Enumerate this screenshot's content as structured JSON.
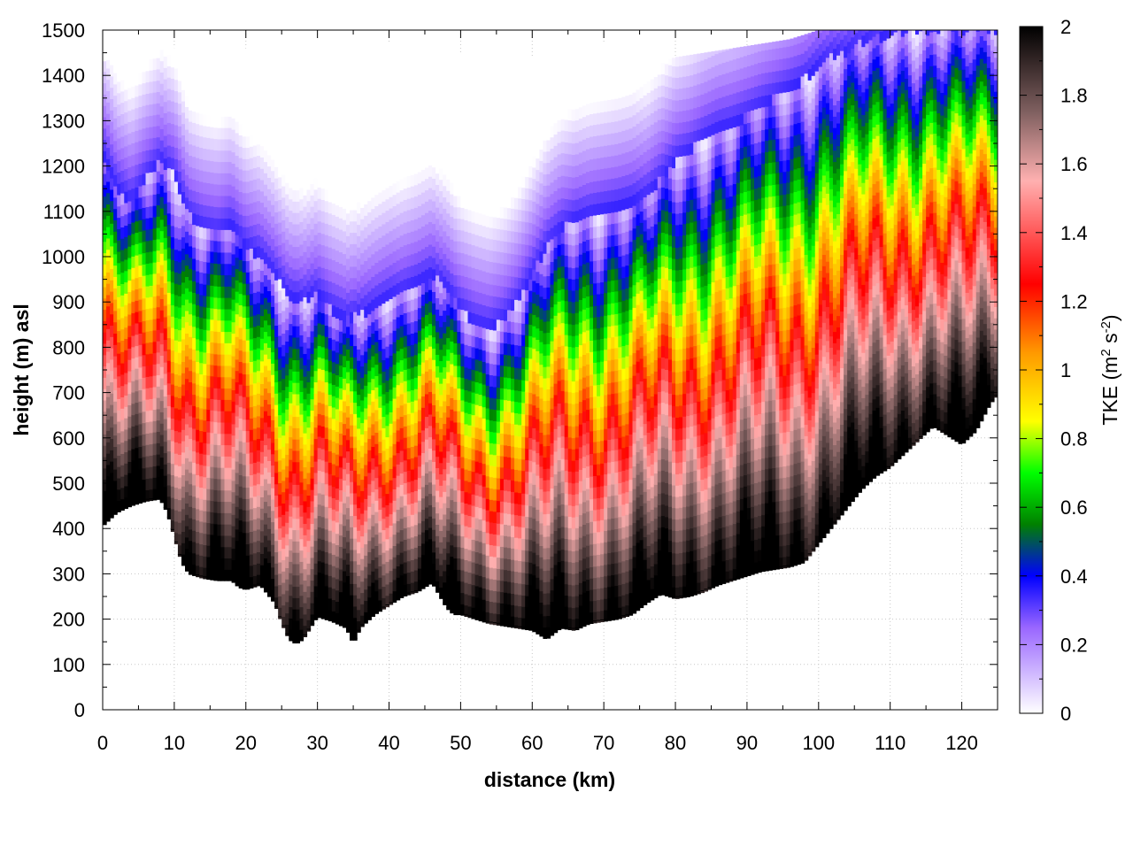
{
  "chart_data": {
    "type": "heatmap",
    "title": "",
    "xlabel": "distance (km)",
    "ylabel": "height (m) asl",
    "xlim": [
      0,
      125
    ],
    "ylim": [
      0,
      1500
    ],
    "x_ticks": [
      "0",
      "10",
      "20",
      "30",
      "40",
      "50",
      "60",
      "70",
      "80",
      "90",
      "100",
      "110",
      "120"
    ],
    "x_tick_values": [
      0,
      10,
      20,
      30,
      40,
      50,
      60,
      70,
      80,
      90,
      100,
      110,
      120
    ],
    "y_ticks": [
      "0",
      "100",
      "200",
      "300",
      "400",
      "500",
      "600",
      "700",
      "800",
      "900",
      "1000",
      "1100",
      "1200",
      "1300",
      "1400",
      "1500"
    ],
    "y_tick_values": [
      0,
      100,
      200,
      300,
      400,
      500,
      600,
      700,
      800,
      900,
      1000,
      1100,
      1200,
      1300,
      1400,
      1500
    ],
    "grid": true,
    "colorbar": {
      "label_main": "TKE (m",
      "label_sup1": "2",
      "label_mid": " s",
      "label_sup2": "-2",
      "label_end": ")",
      "range": [
        0,
        2
      ],
      "ticks": [
        "0",
        "0.2",
        "0.4",
        "0.6",
        "0.8",
        "1",
        "1.2",
        "1.4",
        "1.6",
        "1.8",
        "2"
      ],
      "tick_values": [
        0,
        0.2,
        0.4,
        0.6,
        0.8,
        1.0,
        1.2,
        1.4,
        1.6,
        1.8,
        2.0
      ],
      "color_stops": [
        {
          "v": 0.0,
          "color": "#ffffff"
        },
        {
          "v": 0.25,
          "color": "#9966ff"
        },
        {
          "v": 0.4,
          "color": "#0000ff"
        },
        {
          "v": 0.55,
          "color": "#008000"
        },
        {
          "v": 0.7,
          "color": "#00ff00"
        },
        {
          "v": 0.85,
          "color": "#ffff00"
        },
        {
          "v": 1.05,
          "color": "#ff9900"
        },
        {
          "v": 1.25,
          "color": "#ff0000"
        },
        {
          "v": 1.55,
          "color": "#ffb0b0"
        },
        {
          "v": 1.75,
          "color": "#806060"
        },
        {
          "v": 2.0,
          "color": "#000000"
        }
      ]
    },
    "terrain_height_m": {
      "distance_km": [
        0,
        2,
        4,
        6,
        8,
        9,
        11,
        12,
        14,
        16,
        18,
        19,
        20,
        22,
        24,
        25,
        26,
        27,
        28,
        30,
        32,
        34,
        35,
        36,
        38,
        40,
        42,
        44,
        46,
        48,
        49,
        50,
        52,
        54,
        56,
        58,
        60,
        62,
        64,
        66,
        68,
        70,
        72,
        74,
        76,
        78,
        80,
        82,
        84,
        86,
        88,
        90,
        92,
        94,
        96,
        98,
        100,
        102,
        104,
        106,
        108,
        110,
        112,
        114,
        116,
        118,
        120,
        122,
        124,
        125
      ],
      "height_m": [
        410,
        440,
        455,
        465,
        470,
        440,
        330,
        305,
        295,
        290,
        290,
        275,
        270,
        280,
        240,
        195,
        160,
        150,
        160,
        210,
        200,
        185,
        150,
        185,
        215,
        235,
        255,
        265,
        285,
        230,
        215,
        215,
        205,
        195,
        190,
        185,
        180,
        160,
        185,
        180,
        195,
        200,
        205,
        215,
        240,
        260,
        250,
        255,
        265,
        280,
        290,
        300,
        310,
        315,
        320,
        330,
        370,
        410,
        450,
        490,
        520,
        540,
        570,
        600,
        630,
        610,
        590,
        620,
        680,
        700
      ]
    },
    "boundary_layer_top_m": {
      "distance_km": [
        0,
        2,
        4,
        6,
        8,
        10,
        12,
        14,
        16,
        18,
        20,
        22,
        24,
        26,
        28,
        30,
        32,
        34,
        36,
        38,
        40,
        42,
        44,
        46,
        48,
        50,
        52,
        54,
        56,
        58,
        60,
        62,
        64,
        66,
        68,
        70,
        72,
        74,
        76,
        78,
        80,
        82,
        84,
        86,
        88,
        90,
        92,
        94,
        96,
        98,
        100,
        102,
        104,
        106,
        108,
        110,
        112,
        114,
        116,
        118,
        120,
        122,
        124,
        125
      ],
      "height_m": [
        1230,
        1150,
        1120,
        1170,
        1210,
        1180,
        1090,
        1060,
        1050,
        1070,
        1020,
        1000,
        960,
        910,
        900,
        920,
        880,
        860,
        870,
        890,
        910,
        920,
        940,
        960,
        930,
        880,
        850,
        840,
        860,
        900,
        960,
        1020,
        1060,
        1080,
        1090,
        1100,
        1110,
        1120,
        1130,
        1170,
        1210,
        1230,
        1260,
        1280,
        1290,
        1310,
        1330,
        1350,
        1370,
        1390,
        1420,
        1440,
        1450,
        1470,
        1480,
        1490,
        1495,
        1500,
        1500,
        1500,
        1500,
        1500,
        1500,
        1500
      ]
    },
    "data_top_m": {
      "distance_km": [
        0,
        2,
        4,
        6,
        8,
        10,
        12,
        14,
        16,
        18,
        20,
        25,
        30,
        35,
        40,
        45,
        50,
        55,
        57,
        58,
        60,
        62,
        64,
        66,
        68,
        70,
        72,
        74,
        76,
        78,
        80,
        84,
        88,
        92,
        96,
        100,
        104,
        108,
        112,
        116,
        120,
        124,
        125
      ],
      "height_m": [
        1430,
        1440,
        1450,
        1460,
        1465,
        1460,
        1450,
        1440,
        1440,
        1450,
        1460,
        1470,
        1480,
        1480,
        1470,
        1460,
        1450,
        1430,
        1420,
        1430,
        1440,
        1430,
        1440,
        1450,
        1460,
        1470,
        1480,
        1490,
        1500,
        1430,
        1440,
        1450,
        1460,
        1470,
        1480,
        1500,
        1500,
        1500,
        1500,
        1500,
        1500,
        1500,
        1500
      ]
    }
  }
}
